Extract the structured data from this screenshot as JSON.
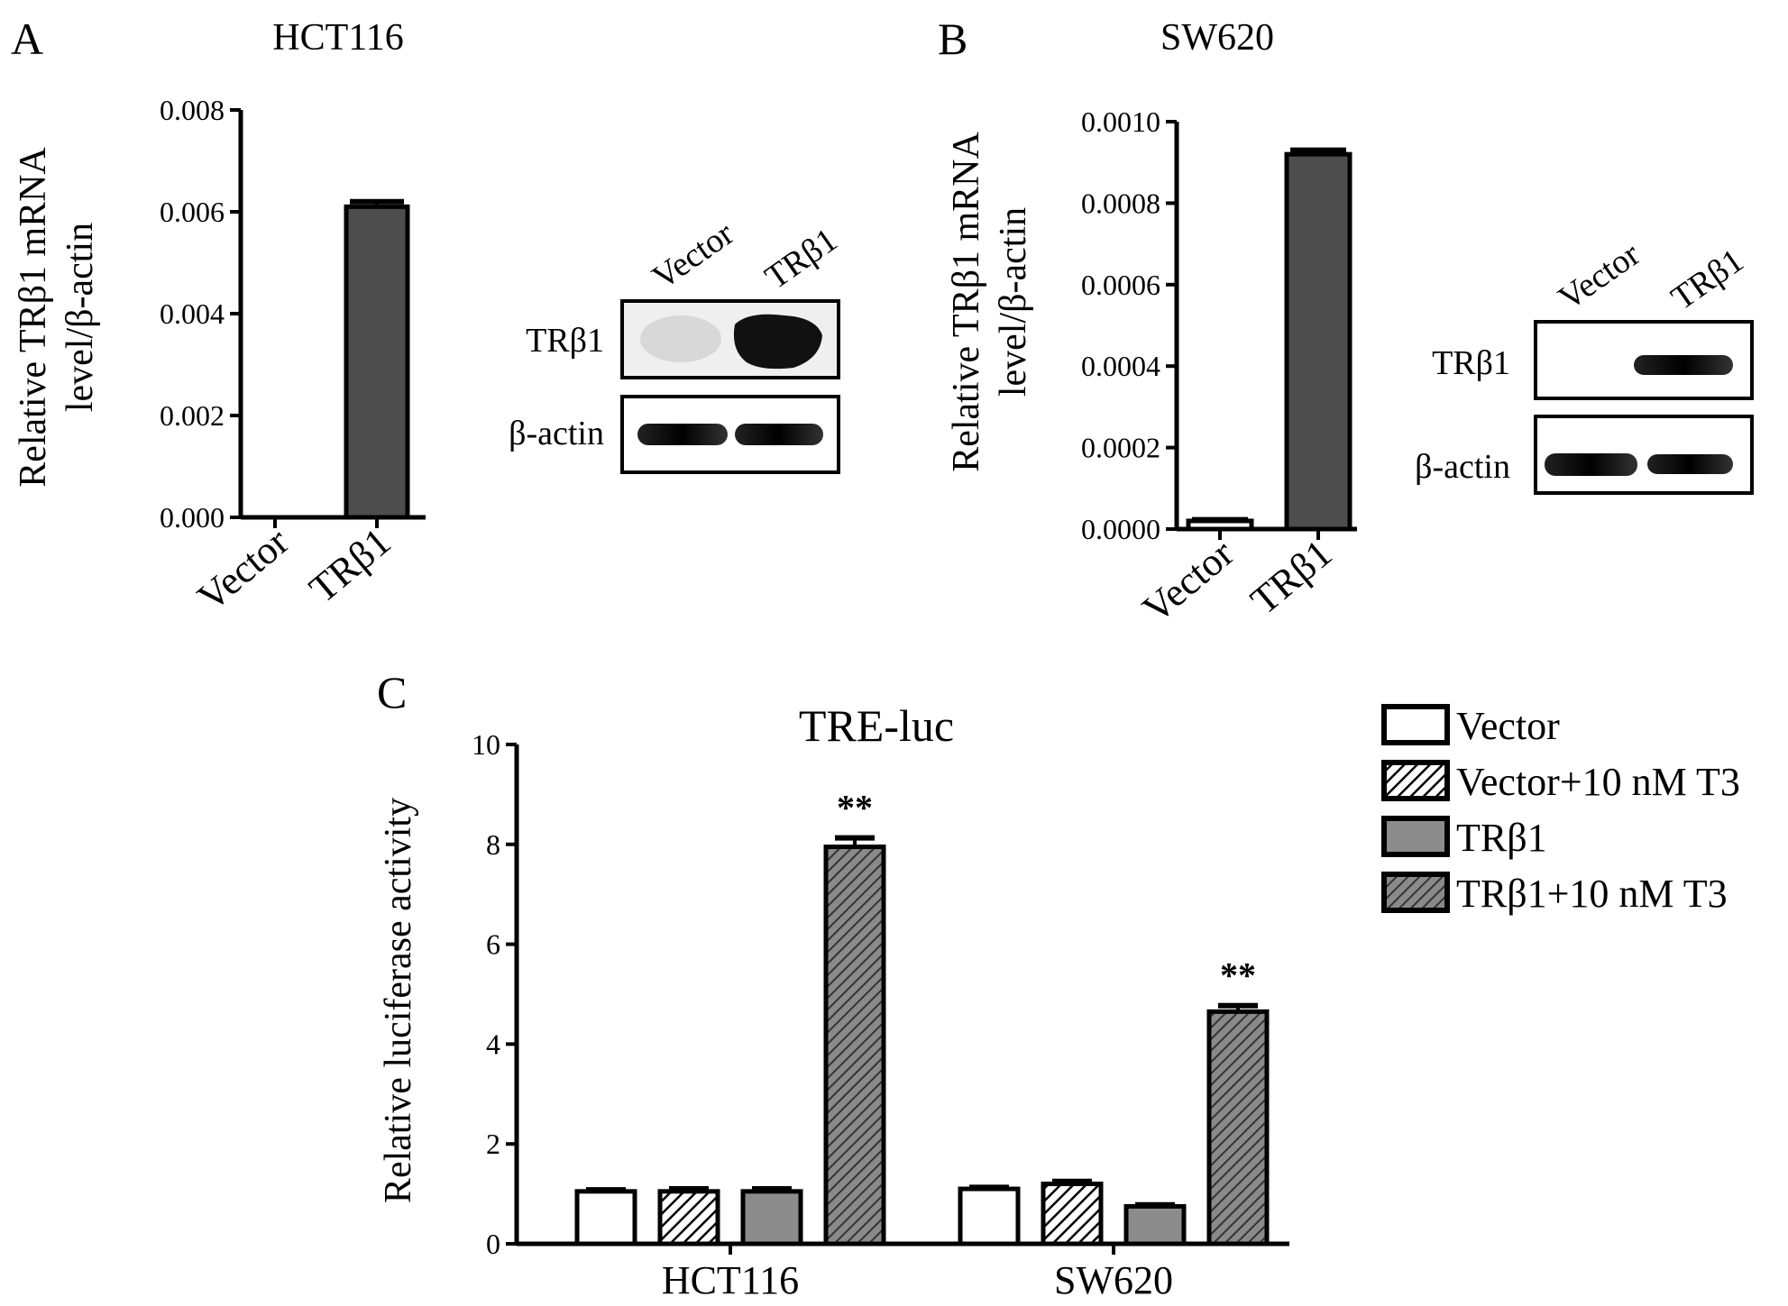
{
  "panels": {
    "A": {
      "letter": "A",
      "title": "HCT116",
      "ylabel": [
        "Relative TRβ1 mRNA",
        "level/β-actin"
      ]
    },
    "B": {
      "letter": "B",
      "title": "SW620",
      "ylabel": [
        "Relative TRβ1 mRNA",
        "level/β-actin"
      ]
    },
    "C": {
      "letter": "C",
      "title": "TRE-luc",
      "ylabel": "Relative luciferase activity"
    }
  },
  "blots": {
    "A": {
      "lanes": [
        "Vector",
        "TRβ1"
      ],
      "rows": [
        "TRβ1",
        "β-actin"
      ]
    },
    "B": {
      "lanes": [
        "Vector",
        "TRβ1"
      ],
      "rows": [
        "TRβ1",
        "β-actin"
      ]
    }
  },
  "chart_data": [
    {
      "panel": "A",
      "type": "bar",
      "title": "HCT116",
      "ylabel": "Relative TRβ1 mRNA level/β-actin",
      "categories": [
        "Vector",
        "TRβ1"
      ],
      "values": [
        0.0,
        0.0061
      ],
      "errors": [
        0.0,
        0.0001
      ],
      "ylim": [
        0,
        0.008
      ],
      "yticks": [
        "0.000",
        "0.002",
        "0.004",
        "0.006",
        "0.008"
      ],
      "colors": [
        "#ffffff",
        "#4d4d4d"
      ]
    },
    {
      "panel": "B",
      "type": "bar",
      "title": "SW620",
      "ylabel": "Relative TRβ1 mRNA level/β-actin",
      "categories": [
        "Vector",
        "TRβ1"
      ],
      "values": [
        2e-05,
        0.00092
      ],
      "errors": [
        3e-06,
        1e-05
      ],
      "ylim": [
        0,
        0.001
      ],
      "yticks": [
        "0.0000",
        "0.0002",
        "0.0004",
        "0.0006",
        "0.0008",
        "0.0010"
      ],
      "colors": [
        "#ffffff",
        "#4d4d4d"
      ]
    },
    {
      "panel": "C",
      "type": "bar",
      "title": "TRE-luc",
      "ylabel": "Relative luciferase activity",
      "categories": [
        "HCT116",
        "SW620"
      ],
      "series": [
        {
          "name": "Vector",
          "values": [
            1.05,
            1.1
          ],
          "errors": [
            0.03,
            0.03
          ],
          "fill": "white",
          "color": "#ffffff"
        },
        {
          "name": "Vector+10 nM T3",
          "values": [
            1.05,
            1.2
          ],
          "errors": [
            0.05,
            0.05
          ],
          "fill": "hatch-light",
          "color": "#ffffff"
        },
        {
          "name": "TRβ1",
          "values": [
            1.05,
            0.75
          ],
          "errors": [
            0.05,
            0.03
          ],
          "fill": "gray",
          "color": "#8c8c8c"
        },
        {
          "name": "TRβ1+10 nM T3",
          "values": [
            7.95,
            4.65
          ],
          "errors": [
            0.18,
            0.12
          ],
          "fill": "hatch-dark",
          "color": "#808080"
        }
      ],
      "annotations": [
        {
          "text": "**",
          "category": "HCT116",
          "series": "TRβ1+10 nM T3"
        },
        {
          "text": "**",
          "category": "SW620",
          "series": "TRβ1+10 nM T3"
        }
      ],
      "ylim": [
        0,
        10
      ],
      "yticks": [
        "0",
        "2",
        "4",
        "6",
        "8",
        "10"
      ],
      "legend_position": "top-right"
    }
  ]
}
